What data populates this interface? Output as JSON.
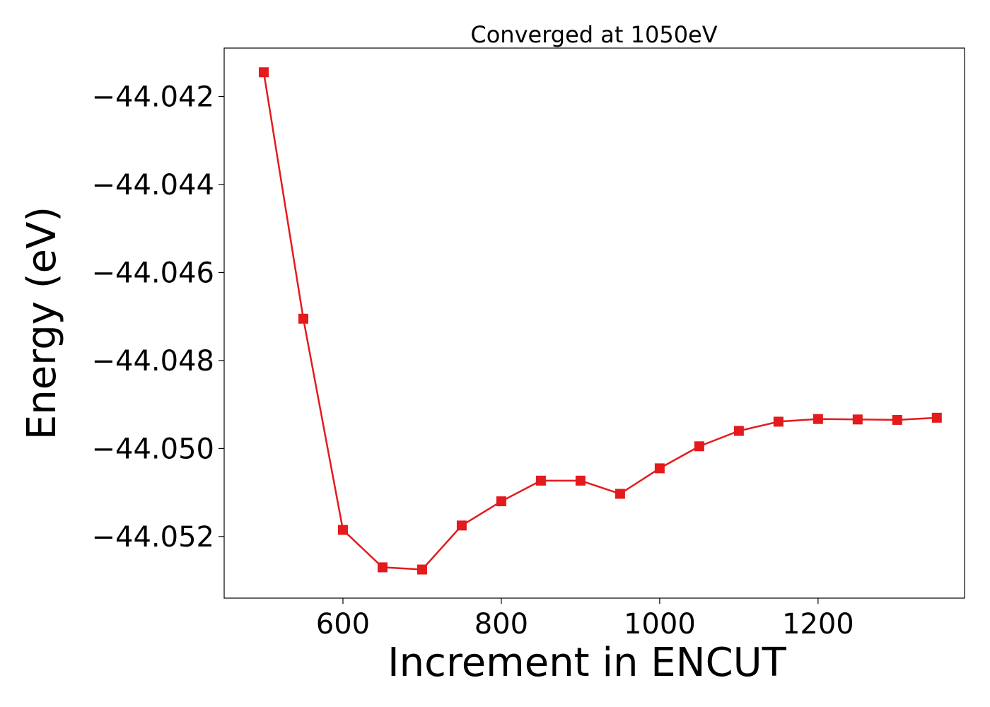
{
  "chart_data": {
    "type": "line",
    "title": "Converged at 1050eV",
    "xlabel": "Increment in ENCUT",
    "ylabel": "Energy (eV)",
    "xlim": [
      450,
      1385
    ],
    "ylim": [
      -44.0534,
      -44.0409
    ],
    "xticks": [
      600,
      800,
      1000,
      1200
    ],
    "xtick_labels": [
      "600",
      "800",
      "1000",
      "1200"
    ],
    "yticks": [
      -44.042,
      -44.044,
      -44.046,
      -44.048,
      -44.05,
      -44.052
    ],
    "ytick_labels": [
      "−44.042",
      "−44.044",
      "−44.046",
      "−44.048",
      "−44.050",
      "−44.052"
    ],
    "grid": false,
    "legend": "none",
    "series": [
      {
        "color": "#e41a1c",
        "marker": "square",
        "x": [
          500,
          550,
          600,
          650,
          700,
          750,
          800,
          850,
          900,
          950,
          1000,
          1050,
          1100,
          1150,
          1200,
          1250,
          1300,
          1350
        ],
        "y": [
          -44.04145,
          -44.04705,
          -44.05185,
          -44.0527,
          -44.05275,
          -44.05175,
          -44.0512,
          -44.05073,
          -44.05073,
          -44.05103,
          -44.05045,
          -44.04995,
          -44.0496,
          -44.04939,
          -44.04933,
          -44.04934,
          -44.04935,
          -44.0493
        ]
      }
    ]
  }
}
